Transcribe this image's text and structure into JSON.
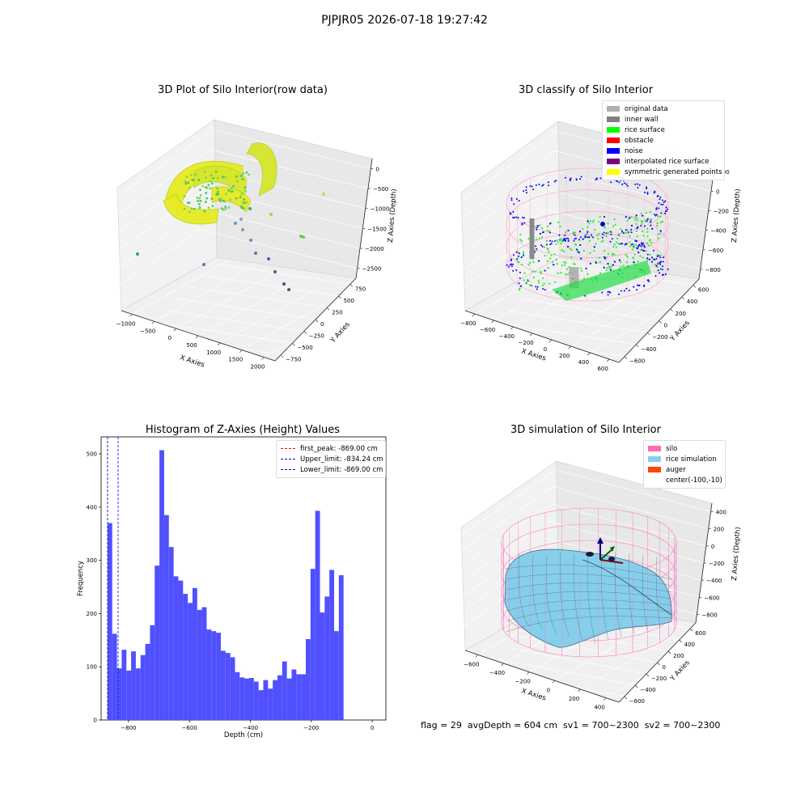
{
  "suptitle": "PJPJR05 2026-07-18 19:27:42",
  "panels": {
    "raw": {
      "title": "3D Plot of Silo Interior(row data)",
      "xlabel": "X Axies",
      "ylabel": "Y Axies",
      "zlabel": "Z Axies (Depth)",
      "xticks": [
        "−1000",
        "−500",
        "0",
        "500",
        "1000",
        "1500",
        "2000"
      ],
      "yticks": [
        "−750",
        "−500",
        "−250",
        "0",
        "250",
        "500",
        "750"
      ],
      "zticks": [
        "0",
        "−500",
        "−1000",
        "−1500",
        "−2000",
        "−2500"
      ]
    },
    "classify": {
      "title": "3D classify of Silo Interior",
      "xlabel": "X Axies",
      "ylabel": "Y Axies",
      "zlabel": "Z Axies (Depth)",
      "xticks": [
        "−800",
        "−600",
        "−400",
        "−200",
        "0",
        "200",
        "400",
        "600"
      ],
      "yticks": [
        "−600",
        "−400",
        "−200",
        "0",
        "200",
        "400",
        "600"
      ],
      "zticks": [
        "200",
        "0",
        "−200",
        "−400",
        "−600",
        "−800"
      ],
      "zticks_partial": "00",
      "legend": [
        {
          "label": "original data",
          "color": "#b0b0b0"
        },
        {
          "label": "inner wall",
          "color": "#808080"
        },
        {
          "label": "rice surface",
          "color": "#00ff00"
        },
        {
          "label": "obstacle",
          "color": "#ff0000"
        },
        {
          "label": "noise",
          "color": "#0000ff"
        },
        {
          "label": "interpolated rice surface",
          "color": "#800080"
        },
        {
          "label": "symmetric generated points",
          "color": "#ffff00"
        }
      ]
    },
    "histogram": {
      "title": "Histogram of Z-Axies (Height) Values",
      "xlabel": "Depth (cm)",
      "ylabel": "Frequency",
      "legend": [
        {
          "label": "first_peak: -869.00 cm",
          "color": "#ff0000"
        },
        {
          "label": "Upper_limit: -834.24 cm",
          "color": "#0000ff"
        },
        {
          "label": "Lower_limit: -869.00 cm",
          "color": "#0000ff"
        }
      ]
    },
    "sim": {
      "title": "3D simulation of Silo Interior",
      "xlabel": "X Axies",
      "ylabel": "Y Axies",
      "zlabel": "Z Axies (Depth)",
      "xticks": [
        "−600",
        "−400",
        "−200",
        "0",
        "200",
        "400"
      ],
      "yticks": [
        "−600",
        "−400",
        "−200",
        "0",
        "200",
        "400",
        "600"
      ],
      "zticks": [
        "400",
        "200",
        "0",
        "−200",
        "−400",
        "−600",
        "−800"
      ],
      "legend": [
        {
          "label": "silo",
          "color": "#ff69b4"
        },
        {
          "label": "rice simulation",
          "color": "#87ceeb"
        },
        {
          "label": "auger",
          "color": "#ff4500"
        },
        {
          "label": "center(-100,-10)",
          "color": ""
        }
      ]
    }
  },
  "status": "flag = 29  avgDepth = 604 cm  sv1 = 700~2300  sv2 = 700~2300",
  "chart_data": [
    {
      "type": "bar",
      "title": "Histogram of Z-Axies (Height) Values",
      "xlabel": "Depth (cm)",
      "ylabel": "Frequency",
      "xlim": [
        -890,
        45
      ],
      "ylim": [
        0,
        532
      ],
      "xticks": [
        -800,
        -600,
        -400,
        -200,
        0
      ],
      "yticks": [
        0,
        100,
        200,
        300,
        400,
        500
      ],
      "bin_start": -869,
      "bin_width": 15.5,
      "values": [
        370,
        162,
        97,
        132,
        93,
        129,
        97,
        122,
        143,
        178,
        290,
        507,
        385,
        325,
        270,
        262,
        237,
        220,
        248,
        207,
        212,
        170,
        167,
        164,
        130,
        126,
        118,
        90,
        80,
        78,
        79,
        72,
        56,
        75,
        59,
        75,
        84,
        110,
        78,
        95,
        86,
        86,
        152,
        284,
        393,
        202,
        232,
        282,
        167,
        272
      ],
      "vlines": [
        {
          "name": "first_peak: -869.00 cm",
          "x": -869.0,
          "color": "#ff0000"
        },
        {
          "name": "Upper_limit: -834.24 cm",
          "x": -834.24,
          "color": "#0000ff"
        },
        {
          "name": "Lower_limit: -869.00 cm",
          "x": -869.0,
          "color": "#0000ff"
        }
      ],
      "bar_color": "#5050ff",
      "legend_position": "upper right"
    }
  ]
}
